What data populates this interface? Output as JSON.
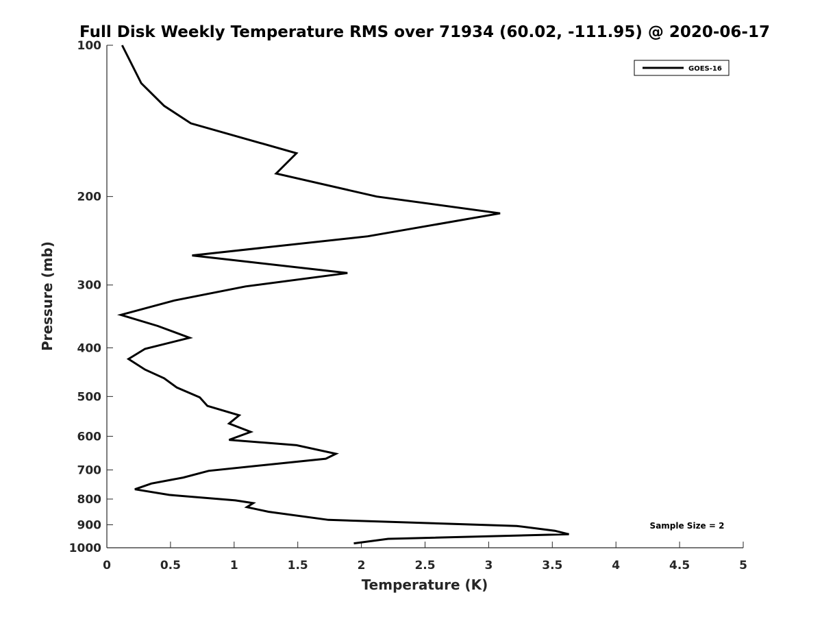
{
  "chart_data": {
    "type": "line",
    "title": "Full Disk Weekly Temperature RMS over 71934 (60.02, -111.95) @ 2020-06-17",
    "xlabel": "Temperature (K)",
    "ylabel": "Pressure (mb)",
    "xlim": [
      0,
      5
    ],
    "ylim": [
      100,
      1000
    ],
    "yscale": "log",
    "y_reversed": true,
    "grid": false,
    "legend_position": "top-right",
    "x_ticks": [
      "0",
      "0.5",
      "1",
      "1.5",
      "2",
      "2.5",
      "3",
      "3.5",
      "4",
      "4.5",
      "5"
    ],
    "y_ticks": [
      "100",
      "200",
      "300",
      "400",
      "500",
      "600",
      "700",
      "800",
      "900",
      "1000"
    ],
    "annotation": "Sample Size = 2",
    "series": [
      {
        "name": "GOES-16",
        "color": "#000000",
        "x": [
          0.12,
          0.27,
          0.45,
          0.66,
          1.49,
          1.33,
          2.12,
          3.09,
          2.05,
          0.67,
          1.89,
          1.09,
          0.53,
          0.11,
          0.4,
          0.65,
          0.3,
          0.17,
          0.3,
          0.45,
          0.55,
          0.73,
          0.79,
          1.04,
          0.96,
          1.13,
          0.96,
          1.49,
          1.8,
          1.72,
          0.8,
          0.6,
          0.35,
          0.22,
          0.49,
          1.01,
          1.15,
          1.1,
          1.27,
          1.74,
          3.22,
          3.52,
          3.63,
          2.21,
          1.94
        ],
        "y": [
          100,
          119,
          132,
          143,
          164,
          180,
          200,
          216,
          240,
          262,
          284,
          302,
          322,
          344,
          362,
          382,
          402,
          421,
          442,
          460,
          480,
          502,
          522,
          545,
          566,
          588,
          610,
          625,
          650,
          665,
          703,
          725,
          745,
          765,
          785,
          805,
          815,
          830,
          848,
          880,
          905,
          925,
          940,
          960,
          980
        ]
      }
    ]
  }
}
